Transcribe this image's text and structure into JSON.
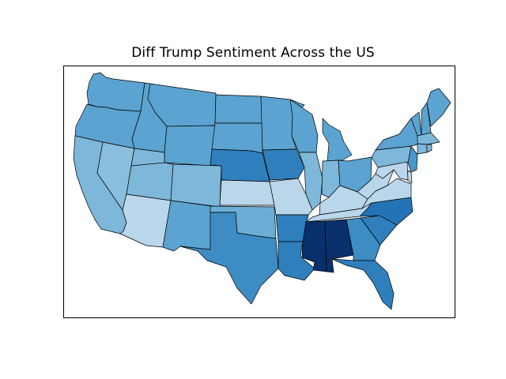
{
  "title": "Diff Trump Sentiment Across the US",
  "colors": {
    "c1": "#bad6eb",
    "c2": "#89bedc",
    "c3": "#7db7da",
    "c4": "#6aaed6",
    "c5": "#5ba3d0",
    "c6": "#4a98c9",
    "c7": "#3d8dc4",
    "c8": "#2f7fbc",
    "c9": "#2473b6",
    "c10": "#08306b"
  },
  "states": [
    {
      "name": "WA",
      "level": "c5"
    },
    {
      "name": "OR",
      "level": "c5"
    },
    {
      "name": "CA",
      "level": "c3"
    },
    {
      "name": "NV",
      "level": "c2"
    },
    {
      "name": "ID",
      "level": "c5"
    },
    {
      "name": "MT",
      "level": "c5"
    },
    {
      "name": "WY",
      "level": "c5"
    },
    {
      "name": "UT",
      "level": "c3"
    },
    {
      "name": "AZ",
      "level": "c1"
    },
    {
      "name": "CO",
      "level": "c3"
    },
    {
      "name": "NM",
      "level": "c5"
    },
    {
      "name": "ND",
      "level": "c5"
    },
    {
      "name": "SD",
      "level": "c5"
    },
    {
      "name": "NE",
      "level": "c8"
    },
    {
      "name": "KS",
      "level": "c1"
    },
    {
      "name": "OK",
      "level": "c4"
    },
    {
      "name": "TX",
      "level": "c7"
    },
    {
      "name": "MN",
      "level": "c5"
    },
    {
      "name": "IA",
      "level": "c8"
    },
    {
      "name": "MO",
      "level": "c1"
    },
    {
      "name": "AR",
      "level": "c8"
    },
    {
      "name": "LA",
      "level": "c8"
    },
    {
      "name": "WI",
      "level": "c5"
    },
    {
      "name": "IL",
      "level": "c3"
    },
    {
      "name": "MI",
      "level": "c5"
    },
    {
      "name": "IN",
      "level": "c3"
    },
    {
      "name": "OH",
      "level": "c5"
    },
    {
      "name": "KY",
      "level": "c1"
    },
    {
      "name": "TN",
      "level": "c1"
    },
    {
      "name": "MS",
      "level": "c10"
    },
    {
      "name": "AL",
      "level": "c10"
    },
    {
      "name": "GA",
      "level": "c7"
    },
    {
      "name": "FL",
      "level": "c8"
    },
    {
      "name": "SC",
      "level": "c8"
    },
    {
      "name": "NC",
      "level": "c9"
    },
    {
      "name": "VA",
      "level": "c1"
    },
    {
      "name": "WV",
      "level": "c1"
    },
    {
      "name": "PA",
      "level": "c3"
    },
    {
      "name": "NY",
      "level": "c5"
    },
    {
      "name": "VT",
      "level": "c5"
    },
    {
      "name": "NH",
      "level": "c5"
    },
    {
      "name": "ME",
      "level": "c5"
    },
    {
      "name": "MA",
      "level": "c3"
    },
    {
      "name": "CT",
      "level": "c3"
    },
    {
      "name": "RI",
      "level": "c3"
    },
    {
      "name": "NJ",
      "level": "c6"
    },
    {
      "name": "DE",
      "level": "c1"
    },
    {
      "name": "MD",
      "level": "c1"
    }
  ]
}
